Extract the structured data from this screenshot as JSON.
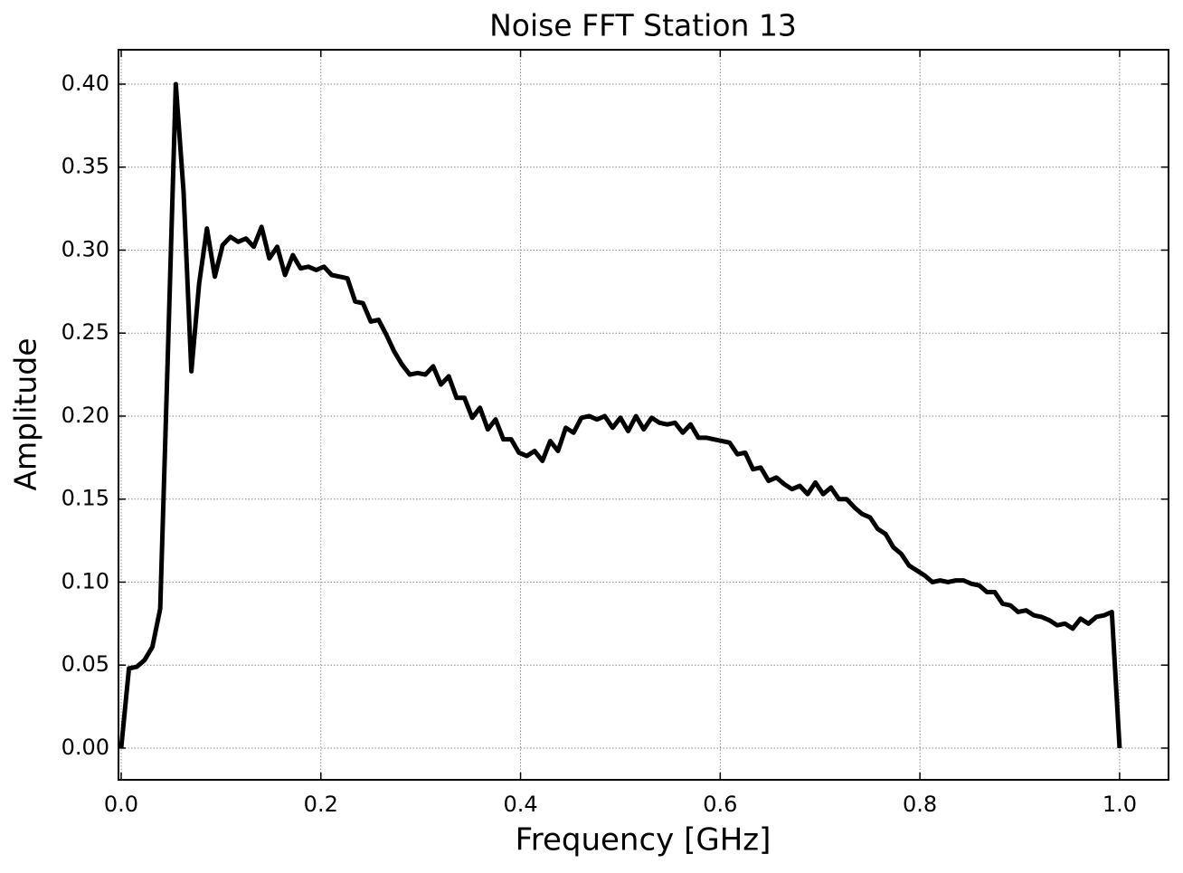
{
  "chart_data": {
    "type": "line",
    "title": "Noise FFT Station 13",
    "xlabel": "Frequency [GHz]",
    "ylabel": "Amplitude",
    "x": [
      0,
      0.0078,
      0.0156,
      0.0234,
      0.0313,
      0.0391,
      0.0469,
      0.0547,
      0.0625,
      0.0703,
      0.0781,
      0.0859,
      0.0938,
      0.1016,
      0.1094,
      0.1172,
      0.125,
      0.1328,
      0.1406,
      0.1484,
      0.1563,
      0.1641,
      0.1719,
      0.1797,
      0.1875,
      0.1953,
      0.2031,
      0.2109,
      0.2188,
      0.2266,
      0.2344,
      0.2422,
      0.25,
      0.2578,
      0.2656,
      0.2734,
      0.2813,
      0.2891,
      0.2969,
      0.3047,
      0.3125,
      0.3203,
      0.3281,
      0.3359,
      0.3438,
      0.3516,
      0.3594,
      0.3672,
      0.375,
      0.3828,
      0.3906,
      0.3984,
      0.4063,
      0.4141,
      0.4219,
      0.4297,
      0.4375,
      0.4453,
      0.4531,
      0.4609,
      0.4688,
      0.4766,
      0.4844,
      0.4922,
      0.5,
      0.5078,
      0.5156,
      0.5234,
      0.5313,
      0.5391,
      0.5469,
      0.5547,
      0.5625,
      0.5703,
      0.5781,
      0.5859,
      0.5938,
      0.6016,
      0.6094,
      0.6172,
      0.625,
      0.6328,
      0.6406,
      0.6484,
      0.6563,
      0.6641,
      0.6719,
      0.6797,
      0.6875,
      0.6953,
      0.7031,
      0.7109,
      0.7188,
      0.7266,
      0.7344,
      0.7422,
      0.75,
      0.7578,
      0.7656,
      0.7734,
      0.7813,
      0.7891,
      0.7969,
      0.8047,
      0.8125,
      0.8203,
      0.8281,
      0.8359,
      0.8438,
      0.8516,
      0.8594,
      0.8672,
      0.875,
      0.8828,
      0.8906,
      0.8984,
      0.9063,
      0.9141,
      0.9219,
      0.9297,
      0.9375,
      0.9453,
      0.9531,
      0.9609,
      0.9688,
      0.9766,
      0.9844,
      0.9922,
      1
    ],
    "series": [
      {
        "color": "#000000",
        "values": [
          0,
          0.048,
          0.049,
          0.053,
          0.061,
          0.084,
          0.24,
          0.4,
          0.335,
          0.227,
          0.28,
          0.313,
          0.284,
          0.303,
          0.308,
          0.305,
          0.307,
          0.302,
          0.314,
          0.295,
          0.302,
          0.285,
          0.297,
          0.289,
          0.29,
          0.288,
          0.29,
          0.285,
          0.284,
          0.283,
          0.269,
          0.268,
          0.257,
          0.258,
          0.249,
          0.239,
          0.231,
          0.225,
          0.226,
          0.225,
          0.23,
          0.219,
          0.224,
          0.211,
          0.211,
          0.199,
          0.205,
          0.192,
          0.198,
          0.186,
          0.186,
          0.178,
          0.176,
          0.179,
          0.173,
          0.185,
          0.179,
          0.193,
          0.19,
          0.199,
          0.2,
          0.198,
          0.2,
          0.193,
          0.199,
          0.191,
          0.2,
          0.192,
          0.199,
          0.196,
          0.195,
          0.196,
          0.19,
          0.195,
          0.187,
          0.187,
          0.186,
          0.185,
          0.184,
          0.177,
          0.178,
          0.168,
          0.169,
          0.161,
          0.163,
          0.159,
          0.156,
          0.158,
          0.153,
          0.16,
          0.153,
          0.157,
          0.15,
          0.15,
          0.145,
          0.141,
          0.139,
          0.132,
          0.129,
          0.121,
          0.117,
          0.11,
          0.107,
          0.104,
          0.1,
          0.101,
          0.1,
          0.101,
          0.101,
          0.099,
          0.098,
          0.094,
          0.094,
          0.087,
          0.086,
          0.082,
          0.083,
          0.08,
          0.079,
          0.077,
          0.074,
          0.075,
          0.072,
          0.078,
          0.075,
          0.079,
          0.08,
          0.082,
          0
        ]
      }
    ],
    "xlim": [
      -0.0027,
      1.049
    ],
    "ylim": [
      -0.0191,
      0.4207
    ],
    "xticks": [
      {
        "value": 0,
        "label": "0.0"
      },
      0.2,
      0.4,
      0.6,
      0.8,
      {
        "value": 1,
        "label": "1.0"
      }
    ],
    "yticks": [
      {
        "value": 0,
        "label": "0.00"
      },
      {
        "value": 0.05,
        "label": "0.05"
      },
      {
        "value": 0.1,
        "label": "0.10"
      },
      {
        "value": 0.15,
        "label": "0.15"
      },
      {
        "value": 0.2,
        "label": "0.20"
      },
      {
        "value": 0.25,
        "label": "0.25"
      },
      {
        "value": 0.3,
        "label": "0.30"
      },
      {
        "value": 0.35,
        "label": "0.35"
      },
      {
        "value": 0.4,
        "label": "0.40"
      }
    ],
    "grid": true
  }
}
